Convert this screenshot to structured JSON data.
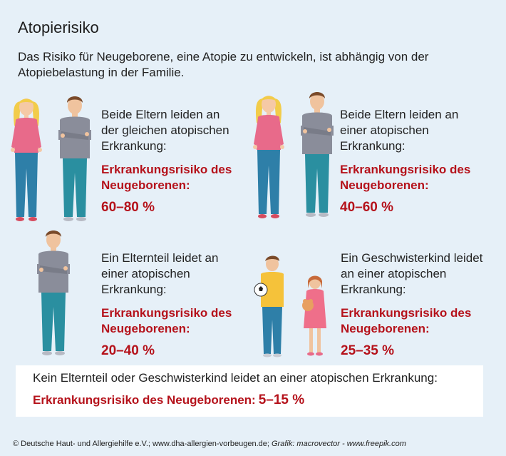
{
  "title": "Atopierisiko",
  "intro": "Das Risiko für Neugeborene, eine Atopie zu entwickeln, ist abhängig von der Atopiebelastung in der Familie.",
  "cards": [
    {
      "desc": [
        "Beide Eltern leiden an",
        "der gleichen atopischen",
        "Erkrankung:"
      ],
      "risk_label": [
        "Erkrankungsrisiko des",
        "Neugeborenen:"
      ],
      "risk_value": "60–80 %"
    },
    {
      "desc": [
        "Beide Eltern leiden an",
        "einer atopischen",
        "Erkrankung:"
      ],
      "risk_label": [
        "Erkrankungsrisiko des",
        "Neugeborenen:"
      ],
      "risk_value": "40–60 %"
    },
    {
      "desc": [
        "Ein Elternteil leidet an",
        "einer atopischen",
        "Erkrankung:"
      ],
      "risk_label": [
        "Erkrankungsrisiko des",
        "Neugeborenen:"
      ],
      "risk_value": "20–40 %"
    },
    {
      "desc": [
        "Ein Geschwisterkind leidet",
        "an einer atopischen",
        "Erkrankung:"
      ],
      "risk_label": [
        "Erkrankungsrisiko des",
        "Neugeborenen:"
      ],
      "risk_value": "25–35 %"
    }
  ],
  "bottom": {
    "text": "Kein Elternteil oder Geschwisterkind leidet an einer atopischen Erkrankung:",
    "risk_label": "Erkrankungsrisiko des Neugeborenen:",
    "risk_value": "5–15 %"
  },
  "footer": {
    "source": "© Deutsche Haut- und Allergiehilfe e.V.; www.dha-allergien-vorbeugen.de;",
    "credit": "Grafik: macrovector - www.freepik.com"
  },
  "colors": {
    "background": "#e6f0f8",
    "accent_red": "#b5121b",
    "box_white": "#ffffff",
    "woman_top": "#e86a8a",
    "man_top": "#8a8d9a",
    "jeans": "#2e7fa8",
    "boy_top": "#f5c23a",
    "girl_dress": "#ef6f8a"
  },
  "icons": [
    "couple-figure",
    "couple-figure",
    "father-figure",
    "siblings-figure"
  ]
}
